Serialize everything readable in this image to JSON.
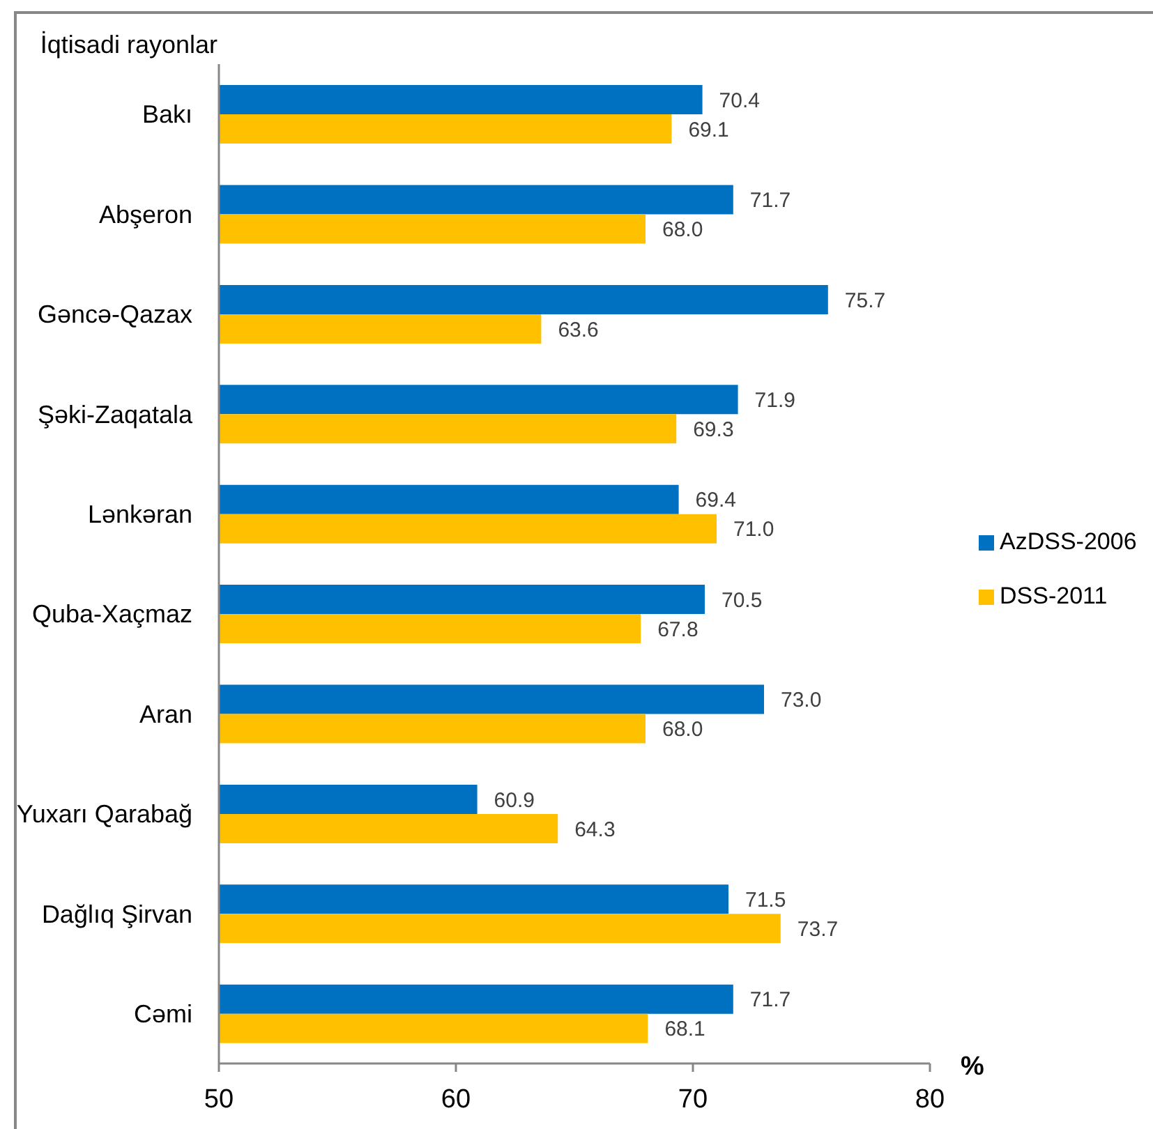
{
  "chart_data": {
    "type": "bar",
    "orientation": "horizontal",
    "ylabel": "İqtisadi rayonlar",
    "xlabel": "%",
    "categories": [
      "Bakı",
      "Abşeron",
      "Gəncə-Qazax",
      "Şəki-Zaqatala",
      "Lənkəran",
      "Quba-Xaçmaz",
      "Aran",
      "Yuxarı Qarabağ",
      "Dağlıq Şirvan",
      "Cəmi"
    ],
    "series": [
      {
        "name": "AzDSS-2006",
        "color": "#0070c0",
        "values": [
          70.4,
          71.7,
          75.7,
          71.9,
          69.4,
          70.5,
          73.0,
          60.9,
          71.5,
          71.7
        ],
        "value_labels": [
          "70.4",
          "71.7",
          "75.7",
          "71.9",
          "69.4",
          "70.5",
          "73.0",
          "60.9",
          "71.5",
          "71.7"
        ]
      },
      {
        "name": "DSS-2011",
        "color": "#ffc000",
        "values": [
          69.1,
          68.0,
          63.6,
          69.3,
          71.0,
          67.8,
          68.0,
          64.3,
          73.7,
          68.1
        ],
        "value_labels": [
          "69.1",
          "68.0",
          "63.6",
          "69.3",
          "71.0",
          "67.8",
          "68.0",
          "64.3",
          "73.7",
          "68.1"
        ]
      }
    ],
    "xlim": [
      50,
      80
    ],
    "xticks": [
      50,
      60,
      70,
      80
    ],
    "legend": "right"
  }
}
